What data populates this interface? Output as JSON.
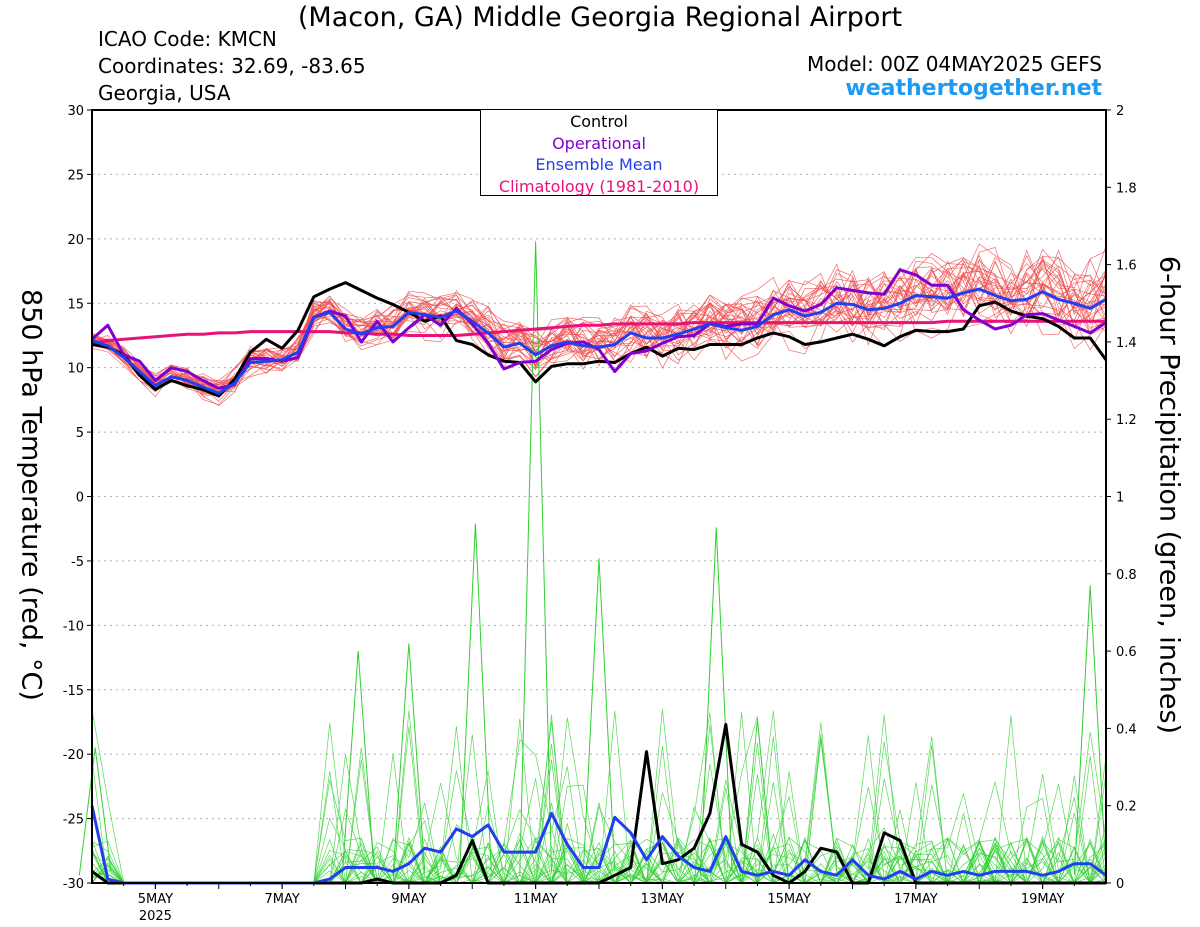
{
  "header": {
    "title": "(Macon, GA) Middle Georgia Regional Airport",
    "icao": "ICAO Code: KMCN",
    "coordinates": "Coordinates: 32.69, -83.65",
    "region": "Georgia, USA",
    "model": "Model: 00Z 04MAY2025 GEFS",
    "site": "weathertogether.net"
  },
  "colors": {
    "temp_members": "#f05050",
    "precip_members": "#30d030",
    "control": "#000000",
    "operational": "#8000d0",
    "mean": "#2040f0",
    "climatology": "#e8127a",
    "site": "#1e9bf0"
  },
  "chart_data": {
    "type": "line",
    "ylabel": "850 hPa Temperature (red, °C)",
    "y2label": "6-hour Precipitation (green, inches)",
    "ylim": [
      -30,
      30
    ],
    "y2lim": [
      0,
      2
    ],
    "yticks": [
      30,
      25,
      20,
      15,
      10,
      5,
      0,
      -5,
      -10,
      -15,
      -20,
      -25,
      -30
    ],
    "y2ticks": [
      2,
      1.8,
      1.6,
      1.4,
      1.2,
      1,
      0.8,
      0.6,
      0.4,
      0.2,
      0
    ],
    "x_axis": {
      "start": "04MAY 00Z",
      "end": "20MAY 00Z",
      "step": "6-hour"
    },
    "xticks": [
      {
        "label": "5MAY",
        "sub": "2025",
        "day": 5
      },
      {
        "label": "7MAY",
        "day": 7
      },
      {
        "label": "9MAY",
        "day": 9
      },
      {
        "label": "11MAY",
        "day": 11
      },
      {
        "label": "13MAY",
        "day": 13
      },
      {
        "label": "15MAY",
        "day": 15
      },
      {
        "label": "17MAY",
        "day": 17
      },
      {
        "label": "19MAY",
        "day": 19
      }
    ],
    "grid": true,
    "legend": {
      "placement": "top-center",
      "entries": [
        {
          "label": "Control",
          "color": "#000000"
        },
        {
          "label": "Operational",
          "color": "#8000d0"
        },
        {
          "label": "Ensemble Mean",
          "color": "#2040f0"
        },
        {
          "label": "Climatology (1981-2010)",
          "color": "#e8127a"
        }
      ]
    },
    "series": [
      {
        "name": "Climatology (1981-2010)",
        "axis": "temp",
        "color": "#e8127a",
        "width": 3,
        "values": [
          11.9,
          12.1,
          12.2,
          12.3,
          12.4,
          12.5,
          12.6,
          12.6,
          12.7,
          12.7,
          12.8,
          12.8,
          12.8,
          12.8,
          12.8,
          12.8,
          12.7,
          12.7,
          12.6,
          12.6,
          12.5,
          12.5,
          12.5,
          12.5,
          12.6,
          12.7,
          12.8,
          12.9,
          13.0,
          13.1,
          13.2,
          13.3,
          13.3,
          13.4,
          13.4,
          13.4,
          13.4,
          13.4,
          13.5,
          13.5,
          13.5,
          13.5,
          13.5,
          13.5,
          13.5,
          13.5,
          13.5,
          13.5,
          13.5,
          13.5,
          13.5,
          13.5,
          13.5,
          13.5,
          13.6,
          13.6,
          13.6,
          13.6,
          13.6,
          13.6,
          13.6,
          13.6,
          13.6,
          13.6,
          13.6
        ]
      },
      {
        "name": "Control",
        "axis": "temp",
        "color": "#000000",
        "width": 3,
        "values": [
          11.8,
          11.6,
          11.0,
          9.4,
          8.3,
          9.0,
          8.6,
          8.3,
          7.8,
          9.1,
          11.2,
          12.2,
          11.5,
          12.9,
          15.5,
          16.1,
          16.6,
          16.0,
          15.4,
          14.9,
          14.3,
          13.6,
          14.0,
          12.1,
          11.8,
          11.0,
          10.5,
          10.4,
          8.9,
          10.1,
          10.3,
          10.3,
          10.5,
          10.4,
          11.1,
          11.6,
          10.9,
          11.5,
          11.4,
          11.8,
          11.8,
          11.8,
          12.3,
          12.7,
          12.4,
          11.8,
          12.0,
          12.3,
          12.6,
          12.2,
          11.7,
          12.4,
          12.9,
          12.8,
          12.8,
          13.0,
          14.8,
          15.1,
          14.4,
          14.0,
          13.8,
          13.2,
          12.3,
          12.3,
          10.6
        ]
      },
      {
        "name": "Operational",
        "axis": "temp",
        "color": "#8000d0",
        "width": 3,
        "values": [
          12.2,
          13.3,
          11.0,
          10.5,
          9.0,
          10.0,
          9.7,
          9.0,
          8.4,
          8.7,
          10.7,
          10.7,
          10.5,
          10.8,
          13.9,
          14.4,
          14.0,
          12.0,
          13.6,
          12.0,
          13.1,
          14.1,
          13.3,
          14.6,
          13.4,
          11.9,
          9.9,
          10.4,
          10.5,
          11.4,
          11.9,
          12.0,
          11.4,
          9.7,
          11.1,
          11.3,
          11.9,
          12.4,
          12.5,
          13.4,
          13.2,
          13.4,
          13.4,
          15.4,
          14.8,
          14.4,
          14.9,
          16.2,
          16.0,
          15.8,
          15.7,
          17.6,
          17.2,
          16.4,
          16.4,
          14.5,
          13.7,
          13.0,
          13.3,
          14.1,
          14.2,
          13.7,
          13.2,
          12.7,
          13.5
        ]
      },
      {
        "name": "Ensemble Mean",
        "axis": "temp",
        "color": "#2040f0",
        "width": 3,
        "values": [
          12.1,
          11.7,
          10.8,
          9.7,
          8.6,
          9.3,
          9.0,
          8.5,
          8.0,
          8.8,
          10.4,
          10.5,
          10.6,
          11.2,
          13.9,
          14.3,
          13.0,
          12.6,
          13.1,
          13.2,
          14.3,
          14.1,
          13.9,
          14.4,
          13.6,
          12.7,
          11.6,
          11.9,
          11.0,
          11.7,
          12.0,
          11.7,
          11.6,
          11.8,
          12.7,
          12.3,
          12.3,
          12.6,
          13.0,
          13.4,
          13.1,
          12.9,
          13.2,
          14.1,
          14.5,
          14.0,
          14.3,
          15.0,
          14.9,
          14.5,
          14.6,
          15.0,
          15.6,
          15.5,
          15.4,
          15.8,
          16.1,
          15.6,
          15.2,
          15.3,
          15.9,
          15.3,
          15.0,
          14.6,
          15.3
        ]
      },
      {
        "name": "Control",
        "axis": "precip",
        "color": "#000000",
        "width": 3,
        "values": [
          0.03,
          0,
          0,
          0,
          0,
          0,
          0,
          0,
          0,
          0,
          0,
          0,
          0,
          0,
          0,
          0,
          0,
          0,
          0.01,
          0,
          0,
          0,
          0,
          0.02,
          0.11,
          0,
          0,
          0,
          0,
          0,
          0,
          0,
          0,
          0.02,
          0.04,
          0.34,
          0.05,
          0.06,
          0.09,
          0.18,
          0.41,
          0.1,
          0.08,
          0.02,
          0,
          0.03,
          0.09,
          0.08,
          0,
          0,
          0.13,
          0.11,
          0,
          0,
          0,
          0,
          0,
          0,
          0,
          0,
          0,
          0,
          0,
          0,
          0
        ]
      },
      {
        "name": "Ensemble Mean",
        "axis": "precip",
        "color": "#2040f0",
        "width": 3,
        "values": [
          0.2,
          0.01,
          0,
          0,
          0,
          0,
          0,
          0,
          0,
          0,
          0,
          0,
          0,
          0,
          0,
          0.01,
          0.04,
          0.04,
          0.04,
          0.03,
          0.05,
          0.09,
          0.08,
          0.14,
          0.12,
          0.15,
          0.08,
          0.08,
          0.08,
          0.18,
          0.1,
          0.04,
          0.04,
          0.17,
          0.13,
          0.06,
          0.12,
          0.07,
          0.04,
          0.03,
          0.12,
          0.03,
          0.02,
          0.03,
          0.02,
          0.06,
          0.03,
          0.02,
          0.06,
          0.02,
          0.01,
          0.03,
          0.01,
          0.03,
          0.02,
          0.03,
          0.02,
          0.03,
          0.03,
          0.03,
          0.02,
          0.03,
          0.05,
          0.05,
          0.02
        ]
      }
    ],
    "member_count": 30,
    "precip_member_peaks": [
      {
        "day": 4.05,
        "value": 0.35
      },
      {
        "day": 8.2,
        "value": 0.6
      },
      {
        "day": 9.0,
        "value": 0.62
      },
      {
        "day": 10.05,
        "value": 0.93
      },
      {
        "day": 11.0,
        "value": 1.66
      },
      {
        "day": 12.0,
        "value": 0.84
      },
      {
        "day": 13.85,
        "value": 0.92
      },
      {
        "day": 19.75,
        "value": 0.77
      }
    ]
  }
}
